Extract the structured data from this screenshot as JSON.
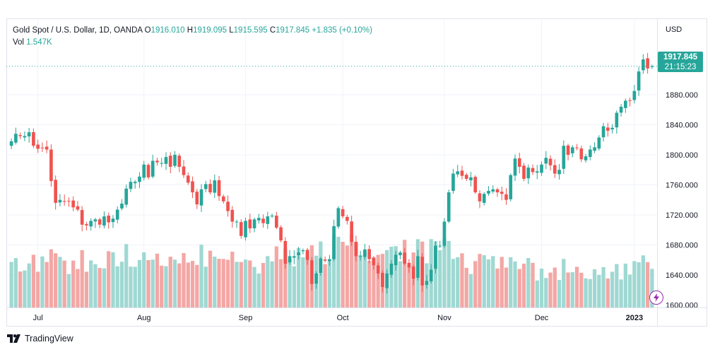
{
  "legend": {
    "symbol": "Gold Spot / U.S. Dollar, 1D, OANDA",
    "open_label": "O",
    "open": "1916.010",
    "high_label": "H",
    "high": "1919.095",
    "low_label": "L",
    "low": "1915.595",
    "close_label": "C",
    "close": "1917.845",
    "change": "+1.835 (+0.10%)",
    "vol_label": "Vol",
    "vol": "1.547K"
  },
  "price_tag": {
    "price": "1917.845",
    "countdown": "21:15:23"
  },
  "footer": {
    "brand": "TradingView"
  },
  "colors": {
    "up": "#26a69a",
    "down": "#ef5350",
    "up_vol": "#9fd8d2",
    "down_vol": "#f3a7a5",
    "grid": "#f0f3fa"
  },
  "chart_data": {
    "type": "candlestick",
    "currency": "USD",
    "ylim": [
      1580,
      1960
    ],
    "y_ticks": [
      "1880.000",
      "1840.000",
      "1800.000",
      "1760.000",
      "1720.000",
      "1680.000",
      "1640.000",
      "1600.000"
    ],
    "x_ticks": [
      {
        "label": "Jul",
        "index": 6
      },
      {
        "label": "Aug",
        "index": 30
      },
      {
        "label": "Sep",
        "index": 53
      },
      {
        "label": "Oct",
        "index": 75
      },
      {
        "label": "Nov",
        "index": 98
      },
      {
        "label": "Dec",
        "index": 120
      },
      {
        "label": "2023",
        "index": 141
      }
    ],
    "close_series": [
      1818,
      1828,
      1825,
      1825,
      1830,
      1812,
      1808,
      1809,
      1807,
      1765,
      1736,
      1740,
      1738,
      1738,
      1730,
      1727,
      1707,
      1706,
      1712,
      1714,
      1707,
      1718,
      1710,
      1715,
      1727,
      1735,
      1755,
      1764,
      1764,
      1771,
      1787,
      1770,
      1792,
      1790,
      1789,
      1797,
      1784,
      1800,
      1784,
      1773,
      1763,
      1750,
      1734,
      1754,
      1761,
      1750,
      1766,
      1745,
      1738,
      1725,
      1711,
      1711,
      1692,
      1712,
      1702,
      1714,
      1716,
      1709,
      1718,
      1719,
      1703,
      1686,
      1655,
      1665,
      1665,
      1670,
      1673,
      1660,
      1628,
      1642,
      1662,
      1659,
      1661,
      1705,
      1729,
      1718,
      1712,
      1684,
      1665,
      1665,
      1674,
      1661,
      1653,
      1642,
      1624,
      1642,
      1655,
      1667,
      1670,
      1655,
      1650,
      1635,
      1665,
      1626,
      1632,
      1647,
      1679,
      1679,
      1711,
      1750,
      1775,
      1778,
      1772,
      1768,
      1770,
      1750,
      1738,
      1748,
      1752,
      1754,
      1750,
      1748,
      1740,
      1773,
      1795,
      1784,
      1768,
      1783,
      1777,
      1778,
      1787,
      1796,
      1786,
      1775,
      1780,
      1812,
      1800,
      1810,
      1809,
      1794,
      1798,
      1807,
      1810,
      1823,
      1838,
      1832,
      1836,
      1856,
      1864,
      1872,
      1872,
      1885,
      1911,
      1927,
      1915,
      1918
    ],
    "volume_range": [
      0,
      160
    ]
  }
}
